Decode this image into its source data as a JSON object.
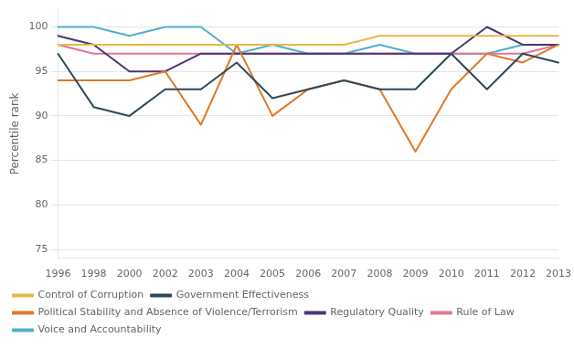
{
  "chart_data": {
    "type": "line",
    "ylabel": "Percentile rank",
    "categories": [
      "1996",
      "1998",
      "2000",
      "2002",
      "2003",
      "2004",
      "2005",
      "2006",
      "2007",
      "2008",
      "2009",
      "2010",
      "2011",
      "2012",
      "2013"
    ],
    "series": [
      {
        "name": "Control of Corruption",
        "color": "#e8b84b",
        "values": [
          98,
          98,
          98,
          98,
          98,
          98,
          98,
          98,
          98,
          99,
          99,
          99,
          99,
          99,
          99
        ]
      },
      {
        "name": "Government Effectiveness",
        "color": "#2d4a5a",
        "values": [
          97,
          91,
          90,
          93,
          93,
          96,
          92,
          93,
          94,
          93,
          93,
          97,
          93,
          97,
          96
        ]
      },
      {
        "name": "Political Stability and Absence of Violence/Terrorism",
        "color": "#e07828",
        "values": [
          94,
          94,
          94,
          95,
          89,
          98,
          90,
          93,
          94,
          93,
          86,
          93,
          97,
          96,
          98
        ]
      },
      {
        "name": "Regulatory Quality",
        "color": "#4a3575",
        "values": [
          99,
          98,
          95,
          95,
          97,
          97,
          97,
          97,
          97,
          97,
          97,
          97,
          100,
          98,
          98
        ]
      },
      {
        "name": "Rule of Law",
        "color": "#e07890",
        "values": [
          98,
          97,
          97,
          97,
          97,
          97,
          97,
          97,
          97,
          97,
          97,
          97,
          97,
          97,
          98
        ]
      },
      {
        "name": "Voice and Accountability",
        "color": "#50b0c8",
        "values": [
          100,
          100,
          99,
          100,
          100,
          97,
          98,
          97,
          97,
          98,
          97,
          97,
          97,
          98,
          98
        ]
      }
    ],
    "ylim": [
      74,
      102
    ],
    "yticks": [
      75,
      80,
      85,
      90,
      95,
      100
    ],
    "grid": true,
    "legend": "bottom"
  }
}
